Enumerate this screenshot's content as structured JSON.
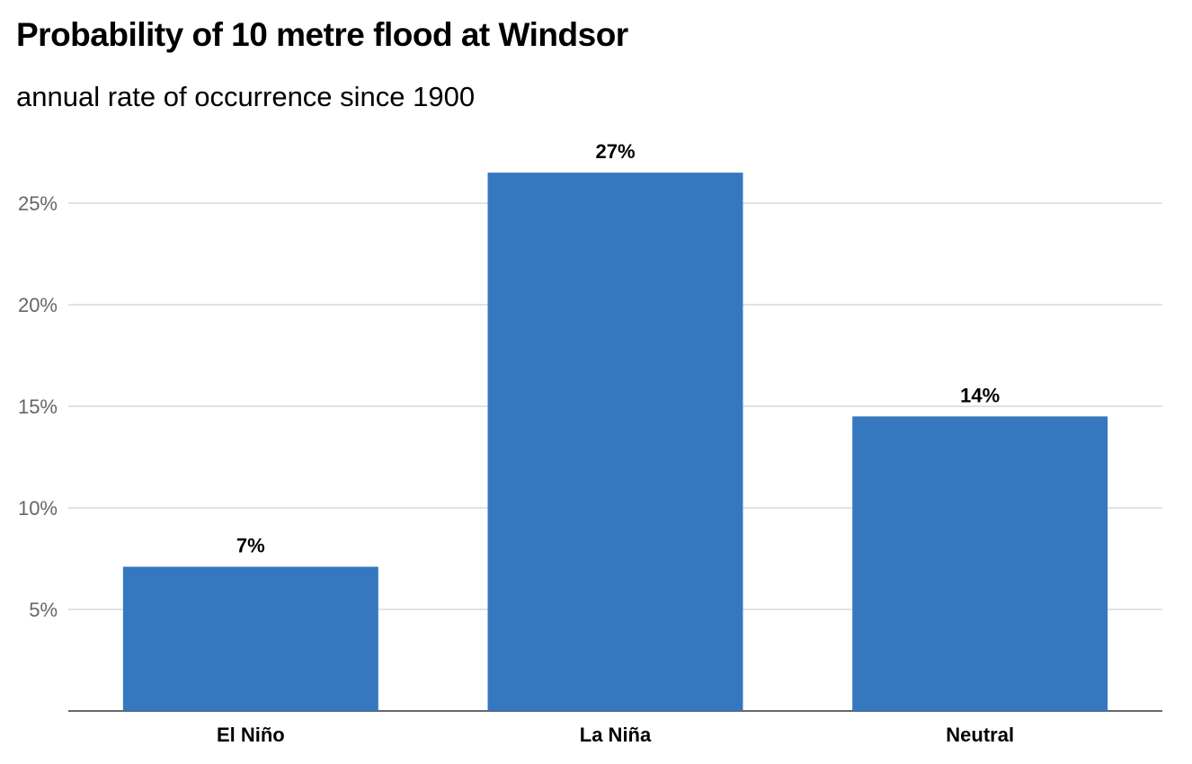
{
  "chart_data": {
    "type": "bar",
    "title": "Probability of 10 metre flood at Windsor",
    "subtitle": "annual rate of occurrence since 1900",
    "categories": [
      "El Niño",
      "La Niña",
      "Neutral"
    ],
    "values": [
      7.1,
      26.5,
      14.5
    ],
    "data_labels": [
      "7%",
      "27%",
      "14%"
    ],
    "yticks": [
      5,
      10,
      15,
      20,
      25
    ],
    "ytick_labels": [
      "5%",
      "10%",
      "15%",
      "20%",
      "25%"
    ],
    "ylim": [
      0,
      27
    ],
    "grid": true,
    "bar_color": "#3578c0",
    "grid_color": "#d9d9d9",
    "axis_color": "#666666"
  }
}
